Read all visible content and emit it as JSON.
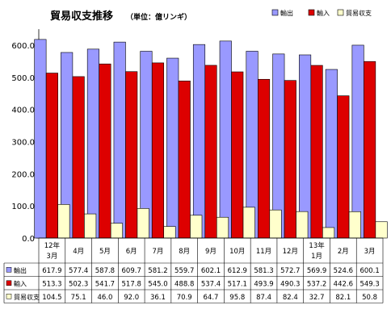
{
  "chart_data": {
    "type": "bar",
    "title": "貿易収支推移",
    "subtitle": "（単位：億リンギ）",
    "categories": [
      [
        "12年",
        "3月"
      ],
      [
        "4月"
      ],
      [
        "5月"
      ],
      [
        "6月"
      ],
      [
        "7月"
      ],
      [
        "8月"
      ],
      [
        "9月"
      ],
      [
        "10月"
      ],
      [
        "11月"
      ],
      [
        "12月"
      ],
      [
        "13年",
        "1月"
      ],
      [
        "2月"
      ],
      [
        "3月"
      ]
    ],
    "series": [
      {
        "name": "輸出",
        "color": "#9999ff",
        "values": [
          617.9,
          577.4,
          587.8,
          609.7,
          581.2,
          559.7,
          602.1,
          612.9,
          581.3,
          572.7,
          569.9,
          524.6,
          600.1
        ]
      },
      {
        "name": "輸入",
        "color": "#dd0000",
        "values": [
          513.3,
          502.3,
          541.7,
          517.8,
          545.0,
          488.8,
          537.4,
          517.1,
          493.9,
          490.3,
          537.2,
          442.6,
          549.3
        ]
      },
      {
        "name": "貿易収支",
        "color": "#ffffcc",
        "values": [
          104.5,
          75.1,
          46.0,
          92.0,
          36.1,
          70.9,
          64.7,
          95.8,
          87.4,
          82.4,
          32.7,
          82.1,
          50.8
        ]
      }
    ],
    "yticks": [
      "0.0",
      "100.0",
      "200.0",
      "300.0",
      "400.0",
      "500.0",
      "600.0"
    ],
    "ylim": [
      0,
      650
    ],
    "grid": false,
    "legend_position": "top-right",
    "table_below": true
  }
}
